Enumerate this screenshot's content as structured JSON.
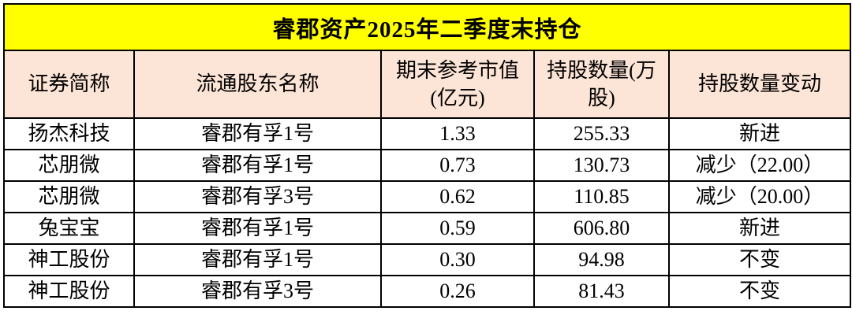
{
  "title": "睿郡资产2025年二季度末持仓",
  "chart_data": {
    "type": "table",
    "title": "睿郡资产2025年二季度末持仓",
    "columns": [
      "证券简称",
      "流通股东名称",
      "期末参考市值(亿元)",
      "持股数量(万股)",
      "持股数量变动"
    ],
    "rows": [
      [
        "扬杰科技",
        "睿郡有孚1号",
        "1.33",
        "255.33",
        "新进"
      ],
      [
        "芯朋微",
        "睿郡有孚1号",
        "0.73",
        "130.73",
        "减少（22.00）"
      ],
      [
        "芯朋微",
        "睿郡有孚3号",
        "0.62",
        "110.85",
        "减少（20.00）"
      ],
      [
        "兔宝宝",
        "睿郡有孚1号",
        "0.59",
        "606.80",
        "新进"
      ],
      [
        "神工股份",
        "睿郡有孚1号",
        "0.30",
        "94.98",
        "不变"
      ],
      [
        "神工股份",
        "睿郡有孚3号",
        "0.26",
        "81.43",
        "不变"
      ]
    ]
  },
  "colors": {
    "title_bg": "#FFFF00",
    "header_bg": "#FCE4D6",
    "row_bg": "#FFFFFF",
    "border": "#000000",
    "text": "#000000"
  }
}
